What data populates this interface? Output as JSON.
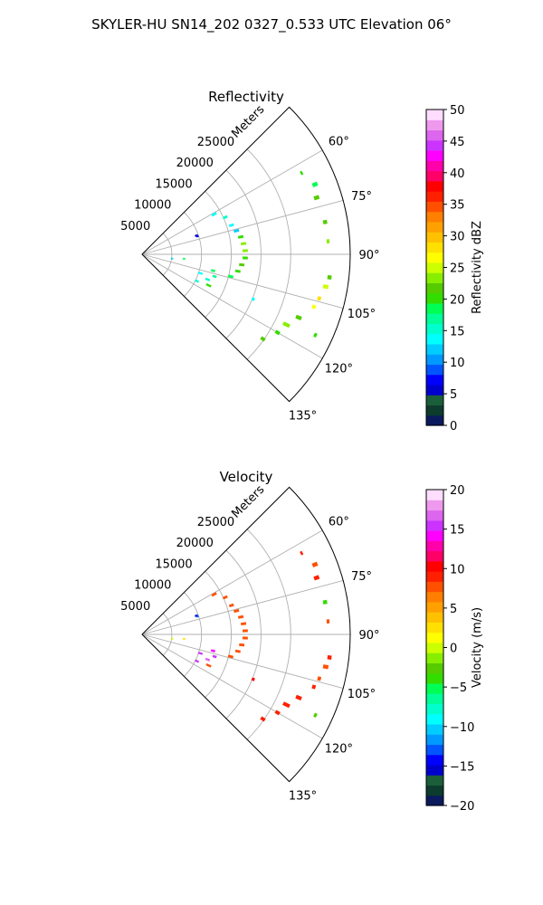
{
  "figure": {
    "title": "SKYLER-HU  SN14_202  0327_0.533 UTC Elevation 06°"
  },
  "chart_data": [
    {
      "type": "polar-sector",
      "title": "Reflectivity",
      "radial_label": "Meters",
      "radial_ticks": [
        5000,
        10000,
        15000,
        20000,
        25000
      ],
      "radial_tick_labels": [
        "5000",
        "10000",
        "15000",
        "20000",
        "25000"
      ],
      "r_max": 35000,
      "azimuth_range": [
        45,
        135
      ],
      "azimuth_ticks": [
        60,
        75,
        90,
        105,
        120,
        135
      ],
      "azimuth_tick_labels": [
        "60°",
        "75°",
        "90°",
        "105°",
        "120°",
        "135°"
      ],
      "grid": true,
      "colorbar": {
        "label": "Reflectivity dBZ",
        "min": 0,
        "max": 50,
        "ticks": [
          0,
          5,
          10,
          15,
          20,
          25,
          30,
          35,
          40,
          45,
          50
        ],
        "tick_labels": [
          "0",
          "5",
          "10",
          "15",
          "20",
          "25",
          "30",
          "35",
          "40",
          "45",
          "50"
        ],
        "colors": [
          "#0a1a5c",
          "#0d3b2e",
          "#1b5e3a",
          "#0000cc",
          "#0000ff",
          "#0055ff",
          "#0099ff",
          "#00ccff",
          "#00ffff",
          "#00ffcc",
          "#00ff99",
          "#00ff55",
          "#33dd00",
          "#55cc00",
          "#88ee00",
          "#ccff00",
          "#ffff00",
          "#ffe000",
          "#ffc000",
          "#ffa000",
          "#ff7f00",
          "#ff5000",
          "#ff2000",
          "#ff0000",
          "#ff0066",
          "#ff00aa",
          "#ff00ff",
          "#cc33ff",
          "#dd66ee",
          "#ee99ee",
          "#ffddff"
        ]
      },
      "echoes": [
        {
          "az": 63,
          "r": [
            30000,
            30200
          ],
          "v": 20
        },
        {
          "az": 68,
          "r": [
            31000,
            31700
          ],
          "v": 18
        },
        {
          "az": 72,
          "r": [
            30500,
            31200
          ],
          "v": 21
        },
        {
          "az": 80,
          "r": [
            31000,
            31500
          ],
          "v": 22
        },
        {
          "az": 86,
          "r": [
            31200,
            31500
          ],
          "v": 24
        },
        {
          "az": 97,
          "r": [
            31500,
            32000
          ],
          "v": 22
        },
        {
          "az": 100,
          "r": [
            31000,
            31700
          ],
          "v": 25
        },
        {
          "az": 104,
          "r": [
            30500,
            30900
          ],
          "v": 28
        },
        {
          "az": 107,
          "r": [
            30000,
            30400
          ],
          "v": 26
        },
        {
          "az": 112,
          "r": [
            28000,
            28800
          ],
          "v": 22
        },
        {
          "az": 116,
          "r": [
            26500,
            27500
          ],
          "v": 23
        },
        {
          "az": 115,
          "r": [
            32000,
            32300
          ],
          "v": 20
        },
        {
          "az": 120,
          "r": [
            26000,
            26600
          ],
          "v": 20
        },
        {
          "az": 125,
          "r": [
            24500,
            25100
          ],
          "v": 22
        },
        {
          "az": 112,
          "r": [
            20000,
            20300
          ],
          "v": 13
        },
        {
          "az": 61,
          "r": [
            13500,
            14200
          ],
          "v": 14
        },
        {
          "az": 66,
          "r": [
            15000,
            15600
          ],
          "v": 16
        },
        {
          "az": 72,
          "r": [
            15500,
            16100
          ],
          "v": 14
        },
        {
          "az": 76,
          "r": [
            16000,
            16700
          ],
          "v": 12
        },
        {
          "az": 80,
          "r": [
            16500,
            17200
          ],
          "v": 20
        },
        {
          "az": 84,
          "r": [
            16800,
            17500
          ],
          "v": 23
        },
        {
          "az": 88,
          "r": [
            17000,
            17700
          ],
          "v": 24
        },
        {
          "az": 92,
          "r": [
            17000,
            17700
          ],
          "v": 20
        },
        {
          "az": 96,
          "r": [
            16500,
            17200
          ],
          "v": 22
        },
        {
          "az": 100,
          "r": [
            16000,
            16700
          ],
          "v": 20
        },
        {
          "az": 104,
          "r": [
            15000,
            15700
          ],
          "v": 18
        },
        {
          "az": 103,
          "r": [
            12000,
            12500
          ],
          "v": 18
        },
        {
          "az": 107,
          "r": [
            12500,
            13000
          ],
          "v": 17
        },
        {
          "az": 108,
          "r": [
            10000,
            10600
          ],
          "v": 13
        },
        {
          "az": 111,
          "r": [
            11500,
            12100
          ],
          "v": 15
        },
        {
          "az": 115,
          "r": [
            12000,
            12700
          ],
          "v": 20
        },
        {
          "az": 116,
          "r": [
            10000,
            10500
          ],
          "v": 16
        },
        {
          "az": 71,
          "r": [
            9500,
            9800
          ],
          "v": 5
        },
        {
          "az": 72,
          "r": [
            9700,
            9900
          ],
          "v": 8
        },
        {
          "az": 96,
          "r": [
            7000,
            7200
          ],
          "v": 18
        },
        {
          "az": 98,
          "r": [
            5000,
            5200
          ],
          "v": 12
        }
      ]
    },
    {
      "type": "polar-sector",
      "title": "Velocity",
      "radial_label": "Meters",
      "radial_ticks": [
        5000,
        10000,
        15000,
        20000,
        25000
      ],
      "radial_tick_labels": [
        "5000",
        "10000",
        "15000",
        "20000",
        "25000"
      ],
      "r_max": 35000,
      "azimuth_range": [
        45,
        135
      ],
      "azimuth_ticks": [
        60,
        75,
        90,
        105,
        120,
        135
      ],
      "azimuth_tick_labels": [
        "60°",
        "75°",
        "90°",
        "105°",
        "120°",
        "135°"
      ],
      "grid": true,
      "colorbar": {
        "label": "Velocity (m/s)",
        "min": -20,
        "max": 20,
        "ticks": [
          -20,
          -15,
          -10,
          -5,
          0,
          5,
          10,
          15,
          20
        ],
        "tick_labels": [
          "−20",
          "−15",
          "−10",
          "−5",
          "0",
          "5",
          "10",
          "15",
          "20"
        ],
        "colors": [
          "#0a1a5c",
          "#0d3b2e",
          "#1b5e3a",
          "#0000cc",
          "#0000ff",
          "#0055ff",
          "#0099ff",
          "#00ccff",
          "#00ffff",
          "#00ffcc",
          "#00ff99",
          "#00ff55",
          "#33dd00",
          "#55cc00",
          "#88ee00",
          "#ccff00",
          "#ffff00",
          "#ffe000",
          "#ffc000",
          "#ffa000",
          "#ff7f00",
          "#ff5000",
          "#ff2000",
          "#ff0000",
          "#ff0066",
          "#ff00aa",
          "#ff00ff",
          "#cc33ff",
          "#dd66ee",
          "#ee99ee",
          "#ffddff"
        ]
      },
      "echoes": [
        {
          "az": 63,
          "r": [
            30000,
            30200
          ],
          "v": 9
        },
        {
          "az": 68,
          "r": [
            31000,
            31700
          ],
          "v": 8
        },
        {
          "az": 72,
          "r": [
            30500,
            31200
          ],
          "v": 9
        },
        {
          "az": 80,
          "r": [
            31000,
            31500
          ],
          "v": -4
        },
        {
          "az": 86,
          "r": [
            31200,
            31500
          ],
          "v": 8
        },
        {
          "az": 97,
          "r": [
            31500,
            32000
          ],
          "v": 9
        },
        {
          "az": 100,
          "r": [
            31000,
            31700
          ],
          "v": 8
        },
        {
          "az": 104,
          "r": [
            30500,
            30900
          ],
          "v": 8
        },
        {
          "az": 107,
          "r": [
            30000,
            30400
          ],
          "v": 9
        },
        {
          "az": 112,
          "r": [
            28000,
            28800
          ],
          "v": 9
        },
        {
          "az": 116,
          "r": [
            26500,
            27500
          ],
          "v": 9
        },
        {
          "az": 115,
          "r": [
            32000,
            32300
          ],
          "v": -3
        },
        {
          "az": 120,
          "r": [
            26000,
            26600
          ],
          "v": 9
        },
        {
          "az": 125,
          "r": [
            24500,
            25100
          ],
          "v": 9
        },
        {
          "az": 112,
          "r": [
            20000,
            20300
          ],
          "v": 10
        },
        {
          "az": 61,
          "r": [
            13500,
            14200
          ],
          "v": 8
        },
        {
          "az": 66,
          "r": [
            15000,
            15600
          ],
          "v": 8
        },
        {
          "az": 72,
          "r": [
            15500,
            16100
          ],
          "v": 8
        },
        {
          "az": 76,
          "r": [
            16000,
            16700
          ],
          "v": 8
        },
        {
          "az": 80,
          "r": [
            16500,
            17200
          ],
          "v": 8
        },
        {
          "az": 84,
          "r": [
            16800,
            17500
          ],
          "v": 8
        },
        {
          "az": 88,
          "r": [
            17000,
            17700
          ],
          "v": 8
        },
        {
          "az": 92,
          "r": [
            17000,
            17700
          ],
          "v": 8
        },
        {
          "az": 96,
          "r": [
            16500,
            17200
          ],
          "v": 8
        },
        {
          "az": 100,
          "r": [
            16000,
            16700
          ],
          "v": 8
        },
        {
          "az": 104,
          "r": [
            15000,
            15700
          ],
          "v": 8
        },
        {
          "az": 103,
          "r": [
            12000,
            12500
          ],
          "v": 14
        },
        {
          "az": 107,
          "r": [
            12500,
            13000
          ],
          "v": 15
        },
        {
          "az": 108,
          "r": [
            10000,
            10600
          ],
          "v": 16
        },
        {
          "az": 111,
          "r": [
            11500,
            12100
          ],
          "v": 17
        },
        {
          "az": 115,
          "r": [
            12000,
            12700
          ],
          "v": 8
        },
        {
          "az": 116,
          "r": [
            10000,
            10500
          ],
          "v": 16
        },
        {
          "az": 71,
          "r": [
            9500,
            9800
          ],
          "v": -16
        },
        {
          "az": 72,
          "r": [
            9700,
            9900
          ],
          "v": -13
        },
        {
          "az": 96,
          "r": [
            7000,
            7200
          ],
          "v": 2
        },
        {
          "az": 98,
          "r": [
            5000,
            5200
          ],
          "v": 0
        }
      ]
    }
  ]
}
